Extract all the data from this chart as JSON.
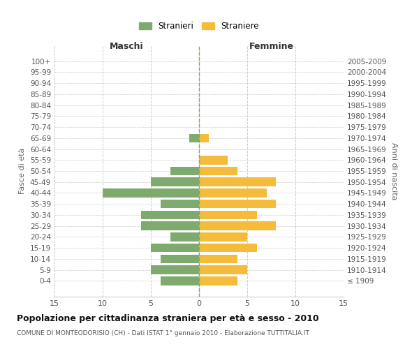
{
  "age_groups": [
    "100+",
    "95-99",
    "90-94",
    "85-89",
    "80-84",
    "75-79",
    "70-74",
    "65-69",
    "60-64",
    "55-59",
    "50-54",
    "45-49",
    "40-44",
    "35-39",
    "30-34",
    "25-29",
    "20-24",
    "15-19",
    "10-14",
    "5-9",
    "0-4"
  ],
  "birth_years": [
    "≤ 1909",
    "1910-1914",
    "1915-1919",
    "1920-1924",
    "1925-1929",
    "1930-1934",
    "1935-1939",
    "1940-1944",
    "1945-1949",
    "1950-1954",
    "1955-1959",
    "1960-1964",
    "1965-1969",
    "1970-1974",
    "1975-1979",
    "1980-1984",
    "1985-1989",
    "1990-1994",
    "1995-1999",
    "2000-2004",
    "2005-2009"
  ],
  "maschi": [
    0,
    0,
    0,
    0,
    0,
    0,
    0,
    1,
    0,
    0,
    3,
    5,
    10,
    4,
    6,
    6,
    3,
    5,
    4,
    5,
    4
  ],
  "femmine": [
    0,
    0,
    0,
    0,
    0,
    0,
    0,
    1,
    0,
    3,
    4,
    8,
    7,
    8,
    6,
    8,
    5,
    6,
    4,
    5,
    4
  ],
  "maschi_color": "#7faa6e",
  "femmine_color": "#f5bc3c",
  "background_color": "#ffffff",
  "grid_color": "#cccccc",
  "title": "Popolazione per cittadinanza straniera per età e sesso - 2010",
  "subtitle": "COMUNE DI MONTEODORISIO (CH) - Dati ISTAT 1° gennaio 2010 - Elaborazione TUTTITALIA.IT",
  "xlabel_left": "Maschi",
  "xlabel_right": "Femmine",
  "ylabel_left": "Fasce di età",
  "ylabel_right": "Anni di nascita",
  "legend_maschi": "Stranieri",
  "legend_femmine": "Straniere",
  "xlim": 15,
  "bar_height": 0.8,
  "center_line_color": "#999966"
}
